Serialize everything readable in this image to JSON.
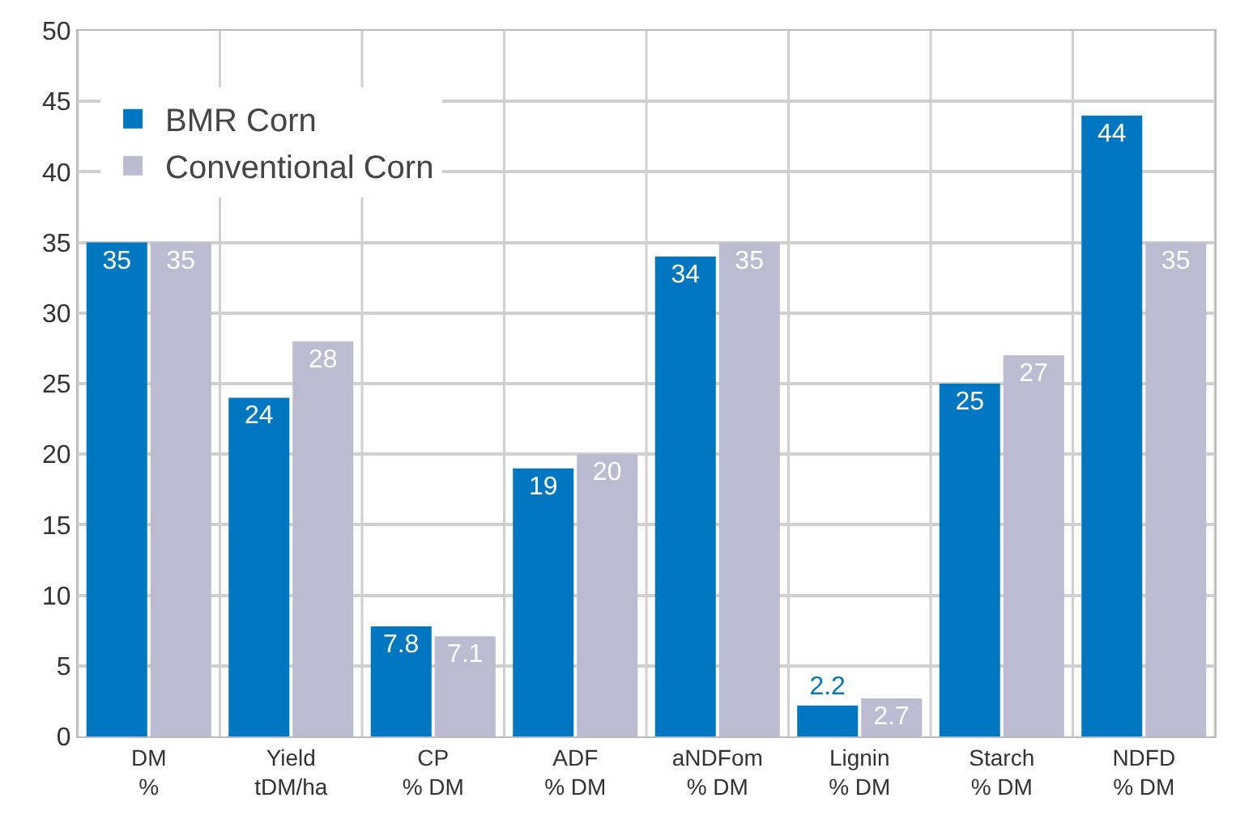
{
  "chart_data": {
    "type": "bar",
    "categories": [
      "DM\n%",
      "Yield\ntDM/ha",
      "CP\n% DM",
      "ADF\n% DM",
      "aNDFom\n% DM",
      "Lignin\n% DM",
      "Starch\n% DM",
      "NDFD\n% DM"
    ],
    "series": [
      {
        "name": "BMR Corn",
        "color": "#0077c0",
        "values": [
          35,
          24,
          7.8,
          19,
          34,
          2.2,
          25,
          44
        ]
      },
      {
        "name": "Conventional Corn",
        "color": "#bbbbd2",
        "values": [
          35,
          28,
          7.1,
          20,
          35,
          2.7,
          27,
          35
        ]
      }
    ],
    "ylim": [
      0,
      50
    ],
    "yticks": [
      0,
      5,
      10,
      15,
      20,
      25,
      30,
      35,
      40,
      45,
      50
    ],
    "grid": true,
    "legend": "top left",
    "data_labels": true
  }
}
